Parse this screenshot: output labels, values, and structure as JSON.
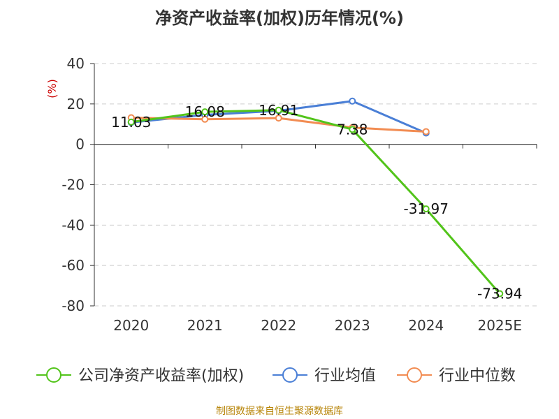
{
  "chart_data": {
    "type": "line",
    "title": "净资产收益率(加权)历年情况(%)",
    "ylabel": "(%)",
    "xlabel": "",
    "categories": [
      "2020",
      "2021",
      "2022",
      "2023",
      "2024",
      "2025E"
    ],
    "ylim": [
      -80,
      40
    ],
    "yticks": [
      40,
      20,
      0,
      -20,
      -40,
      -60,
      -80
    ],
    "grid": true,
    "legend_position": "bottom",
    "series": [
      {
        "name": "公司净资产收益率(加权)",
        "color": "#52c41a",
        "values": [
          11.03,
          16.08,
          16.91,
          7.38,
          -31.97,
          -73.94
        ],
        "labels": [
          "11.03",
          "16.08",
          "16.91",
          "7.38",
          "-31.97",
          "-73.94"
        ]
      },
      {
        "name": "行业均值",
        "color": "#4a7fd6",
        "values": [
          10.8,
          14.6,
          16.6,
          21.4,
          5.6,
          null
        ]
      },
      {
        "name": "行业中位数",
        "color": "#f28c52",
        "values": [
          13.2,
          12.4,
          13.0,
          8.3,
          6.3,
          null
        ]
      }
    ]
  },
  "footer": "制图数据来自恒生聚源数据库"
}
